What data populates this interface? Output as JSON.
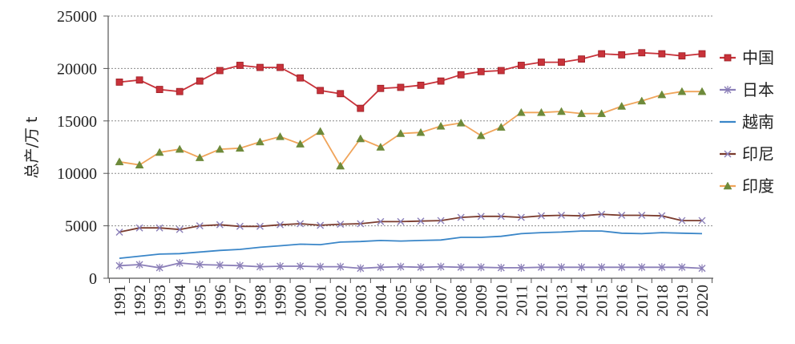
{
  "chart_data": {
    "type": "line",
    "ylabel": "总产/万 t",
    "xlabel": "",
    "ylim": [
      0,
      25000
    ],
    "yticks": [
      0,
      5000,
      10000,
      15000,
      20000,
      25000
    ],
    "grid": "horizontal-dotted",
    "legend_position": "right",
    "categories": [
      "1991",
      "1992",
      "1993",
      "1994",
      "1995",
      "1996",
      "1997",
      "1998",
      "1999",
      "2000",
      "2001",
      "2002",
      "2003",
      "2004",
      "2005",
      "2006",
      "2007",
      "2008",
      "2009",
      "2010",
      "2011",
      "2012",
      "2013",
      "2014",
      "2015",
      "2016",
      "2017",
      "2018",
      "2019",
      "2020"
    ],
    "series": [
      {
        "name": "中国",
        "color": "#c8323a",
        "marker": "square",
        "values": [
          18700,
          18900,
          18000,
          17800,
          18800,
          19800,
          20300,
          20100,
          20100,
          19100,
          17900,
          17600,
          16200,
          18100,
          18200,
          18400,
          18800,
          19400,
          19700,
          19800,
          20300,
          20600,
          20600,
          20900,
          21400,
          21300,
          21500,
          21400,
          21200,
          21400
        ]
      },
      {
        "name": "日本",
        "color": "#8b7fb8",
        "marker": "star",
        "values": [
          1200,
          1300,
          1000,
          1450,
          1300,
          1250,
          1200,
          1100,
          1150,
          1150,
          1100,
          1100,
          950,
          1050,
          1100,
          1050,
          1100,
          1050,
          1050,
          1000,
          1000,
          1050,
          1050,
          1050,
          1050,
          1050,
          1050,
          1050,
          1050,
          950
        ]
      },
      {
        "name": "越南",
        "color": "#3a86c8",
        "marker": "none",
        "values": [
          1900,
          2100,
          2300,
          2350,
          2500,
          2650,
          2750,
          2950,
          3100,
          3250,
          3200,
          3450,
          3500,
          3600,
          3550,
          3600,
          3650,
          3900,
          3900,
          4000,
          4250,
          4350,
          4400,
          4500,
          4500,
          4300,
          4250,
          4350,
          4300,
          4250
        ]
      },
      {
        "name": "印尼",
        "color": "#7a3b2e",
        "marker": "cross",
        "values": [
          4400,
          4800,
          4800,
          4650,
          5000,
          5100,
          4950,
          4950,
          5100,
          5200,
          5050,
          5150,
          5200,
          5400,
          5400,
          5450,
          5500,
          5800,
          5900,
          5900,
          5800,
          5950,
          6000,
          5950,
          6100,
          6000,
          6000,
          5950,
          5500,
          5500
        ]
      },
      {
        "name": "印度",
        "color": "#f0a45a",
        "marker": "triangle",
        "values": [
          11100,
          10800,
          12000,
          12300,
          11500,
          12300,
          12400,
          13000,
          13500,
          12800,
          14000,
          10700,
          13300,
          12500,
          13800,
          13900,
          14500,
          14800,
          13600,
          14400,
          15800,
          15800,
          15900,
          15700,
          15700,
          16400,
          16900,
          17500,
          17800,
          17800
        ]
      }
    ]
  }
}
